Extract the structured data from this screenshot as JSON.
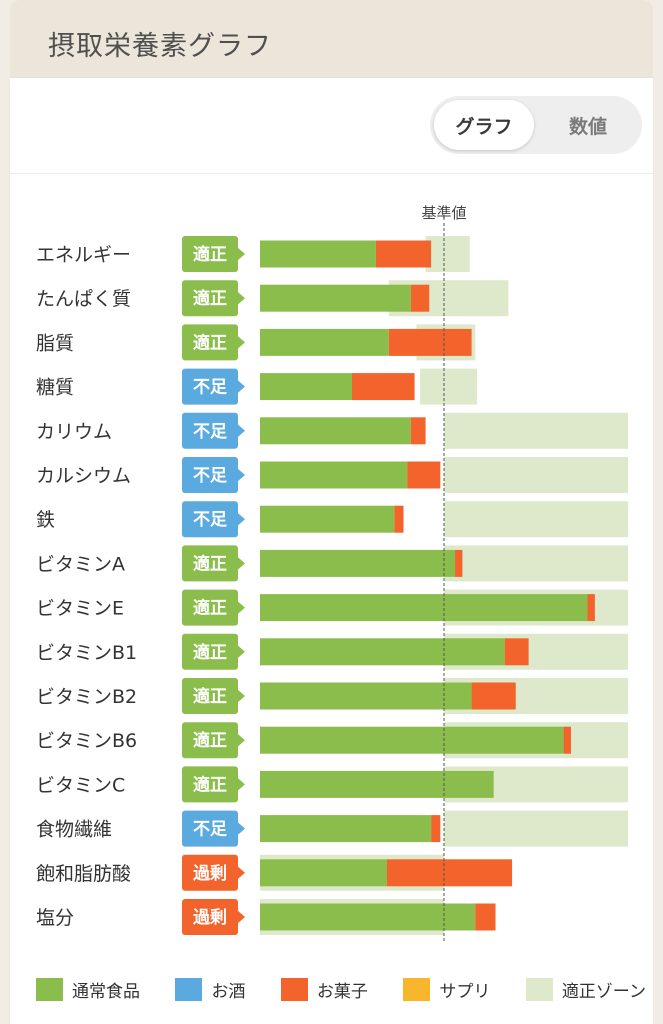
{
  "header": {
    "title": "摂取栄養素グラフ"
  },
  "view_toggle": {
    "graph_label": "グラフ",
    "value_label": "数値",
    "selected": "グラフ"
  },
  "colors": {
    "normal_food": "#8bbd4c",
    "alcohol": "#5aa9df",
    "snacks": "#f2642c",
    "supplement": "#f8b62d",
    "zone": "#dee9cc",
    "badge_ok": "#8bbd4c",
    "badge_low": "#5aa9df",
    "badge_high": "#f2642c"
  },
  "chart_data": {
    "type": "bar",
    "orientation": "horizontal",
    "stacked": true,
    "reference_label": "基準値",
    "categories": [
      "エネルギー",
      "たんぱく質",
      "脂質",
      "糖質",
      "カリウム",
      "カルシウム",
      "鉄",
      "ビタミンA",
      "ビタミンE",
      "ビタミンB1",
      "ビタミンB2",
      "ビタミンB6",
      "ビタミンC",
      "食物繊維",
      "飽和脂肪酸",
      "塩分"
    ],
    "status": [
      "適正",
      "適正",
      "適正",
      "不足",
      "不足",
      "不足",
      "不足",
      "適正",
      "適正",
      "適正",
      "適正",
      "適正",
      "適正",
      "不足",
      "過剰",
      "過剰"
    ],
    "series": [
      {
        "name": "通常食品",
        "values": [
          63,
          82,
          70,
          50,
          82,
          80,
          73,
          106,
          178,
          133,
          115,
          165,
          127,
          93,
          69,
          117
        ]
      },
      {
        "name": "お酒",
        "values": [
          0,
          0,
          0,
          0,
          0,
          0,
          0,
          0,
          0,
          0,
          0,
          0,
          0,
          0,
          0,
          0
        ]
      },
      {
        "name": "お菓子",
        "values": [
          30,
          10,
          45,
          34,
          8,
          18,
          5,
          4,
          4,
          13,
          24,
          4,
          0,
          5,
          68,
          11
        ]
      },
      {
        "name": "サプリ",
        "values": [
          0,
          0,
          0,
          0,
          0,
          0,
          0,
          0,
          0,
          0,
          0,
          0,
          0,
          0,
          0,
          0
        ]
      }
    ],
    "zones": [
      [
        90,
        114
      ],
      [
        70,
        135
      ],
      [
        85,
        117
      ],
      [
        87,
        118
      ],
      [
        100,
        200
      ],
      [
        100,
        200
      ],
      [
        100,
        200
      ],
      [
        100,
        200
      ],
      [
        100,
        200
      ],
      [
        100,
        200
      ],
      [
        100,
        200
      ],
      [
        100,
        200
      ],
      [
        100,
        200
      ],
      [
        100,
        200
      ],
      [
        0,
        100
      ],
      [
        0,
        100
      ]
    ],
    "reference_value": 100,
    "xlim": [
      0,
      200
    ],
    "legend": [
      "通常食品",
      "お酒",
      "お菓子",
      "サプリ",
      "適正ゾーン"
    ],
    "legend_position": "bottom"
  }
}
